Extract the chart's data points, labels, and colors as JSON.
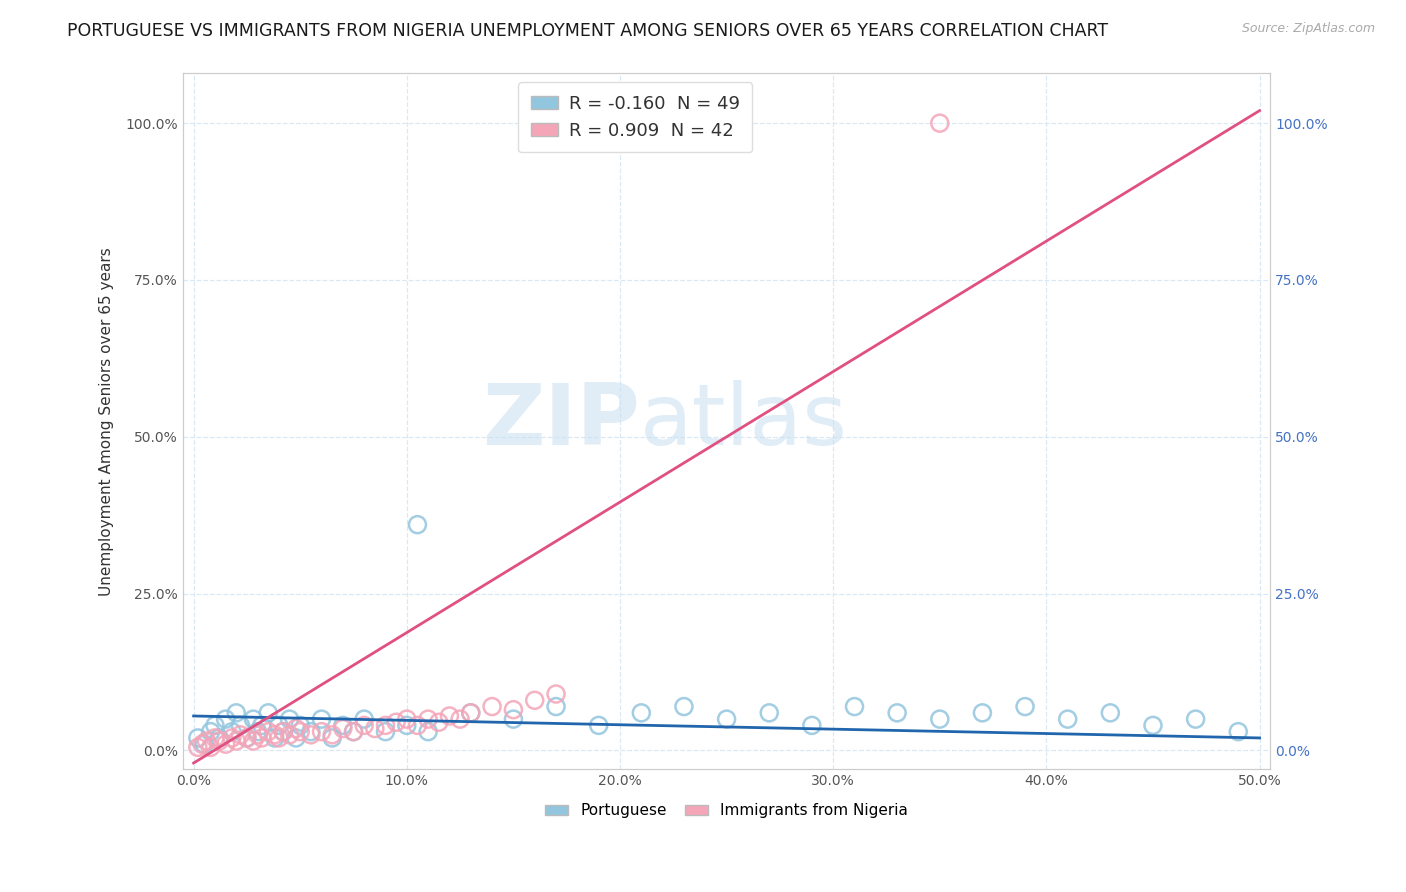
{
  "title": "PORTUGUESE VS IMMIGRANTS FROM NIGERIA UNEMPLOYMENT AMONG SENIORS OVER 65 YEARS CORRELATION CHART",
  "source": "Source: ZipAtlas.com",
  "ylabel": "Unemployment Among Seniors over 65 years",
  "xlim": [
    0.0,
    0.5
  ],
  "ylim": [
    0.0,
    1.05
  ],
  "xticks": [
    0.0,
    0.1,
    0.2,
    0.3,
    0.4,
    0.5
  ],
  "yticks": [
    0.0,
    0.25,
    0.5,
    0.75,
    1.0
  ],
  "legend_labels": [
    "Portuguese",
    "Immigrants from Nigeria"
  ],
  "R_portuguese": -0.16,
  "N_portuguese": 49,
  "R_nigeria": 0.909,
  "N_nigeria": 42,
  "color_portuguese": "#92c5de",
  "color_nigeria": "#f4a5b8",
  "line_color_portuguese": "#2166ac",
  "line_color_nigeria": "#e05080",
  "background_color": "#ffffff",
  "grid_color": "#d8e8f5",
  "title_fontsize": 12.5,
  "axis_label_fontsize": 11,
  "watermark_zip": "ZIP",
  "watermark_atlas": "atlas",
  "right_axis_color": "#4472c4",
  "port_x": [
    0.002,
    0.005,
    0.008,
    0.01,
    0.012,
    0.015,
    0.018,
    0.02,
    0.022,
    0.025,
    0.028,
    0.03,
    0.032,
    0.035,
    0.038,
    0.04,
    0.042,
    0.045,
    0.048,
    0.05,
    0.055,
    0.06,
    0.065,
    0.07,
    0.075,
    0.08,
    0.09,
    0.1,
    0.105,
    0.11,
    0.13,
    0.15,
    0.17,
    0.19,
    0.21,
    0.23,
    0.25,
    0.27,
    0.29,
    0.31,
    0.33,
    0.35,
    0.37,
    0.39,
    0.41,
    0.43,
    0.45,
    0.47,
    0.49
  ],
  "port_y": [
    0.02,
    0.01,
    0.03,
    0.04,
    0.02,
    0.05,
    0.03,
    0.06,
    0.04,
    0.02,
    0.05,
    0.03,
    0.04,
    0.06,
    0.02,
    0.04,
    0.03,
    0.05,
    0.02,
    0.04,
    0.03,
    0.05,
    0.02,
    0.04,
    0.03,
    0.05,
    0.03,
    0.04,
    0.36,
    0.03,
    0.06,
    0.05,
    0.07,
    0.04,
    0.06,
    0.07,
    0.05,
    0.06,
    0.04,
    0.07,
    0.06,
    0.05,
    0.06,
    0.07,
    0.05,
    0.06,
    0.04,
    0.05,
    0.03
  ],
  "nig_x": [
    0.002,
    0.004,
    0.006,
    0.008,
    0.01,
    0.012,
    0.015,
    0.018,
    0.02,
    0.022,
    0.025,
    0.028,
    0.03,
    0.032,
    0.035,
    0.038,
    0.04,
    0.042,
    0.045,
    0.048,
    0.05,
    0.055,
    0.06,
    0.065,
    0.07,
    0.075,
    0.08,
    0.085,
    0.09,
    0.095,
    0.1,
    0.105,
    0.11,
    0.115,
    0.12,
    0.125,
    0.13,
    0.14,
    0.15,
    0.16,
    0.17,
    0.35
  ],
  "nig_y": [
    0.005,
    0.01,
    0.015,
    0.005,
    0.02,
    0.015,
    0.01,
    0.02,
    0.015,
    0.025,
    0.02,
    0.015,
    0.025,
    0.02,
    0.03,
    0.025,
    0.02,
    0.03,
    0.025,
    0.035,
    0.03,
    0.025,
    0.03,
    0.025,
    0.035,
    0.03,
    0.04,
    0.035,
    0.04,
    0.045,
    0.05,
    0.04,
    0.05,
    0.045,
    0.055,
    0.05,
    0.06,
    0.07,
    0.065,
    0.08,
    0.09,
    1.0
  ],
  "port_line_x": [
    0.0,
    0.5
  ],
  "port_line_y": [
    0.055,
    0.02
  ],
  "nig_line_x": [
    0.0,
    0.5
  ],
  "nig_line_y": [
    -0.02,
    1.02
  ]
}
